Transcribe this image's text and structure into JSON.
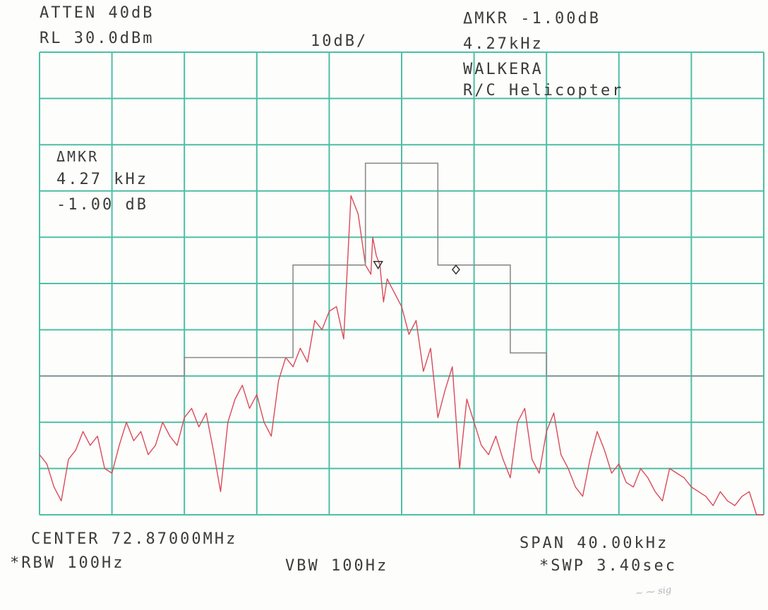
{
  "header": {
    "atten": "ATTEN 40dB",
    "ref_level": "RL 30.0dBm",
    "scale": "10dB/",
    "delta_marker_db": "ΔMKR -1.00dB",
    "delta_marker_freq": "4.27kHz",
    "title_line1": "WALKERA",
    "title_line2": "R/C Helicopter"
  },
  "marker_box": {
    "label": "ΔMKR",
    "freq": "4.27 kHz",
    "level": "-1.00 dB"
  },
  "footer": {
    "center": "CENTER 72.87000MHz",
    "span": "SPAN 40.00kHz",
    "rbw": "*RBW 100Hz",
    "vbw": "VBW 100Hz",
    "sweep": "*SWP 3.40sec"
  },
  "colors": {
    "grid": "#4cbfa6",
    "trace": "#d94a5a",
    "mask": "#8c8c8c",
    "text": "#3b3b3b"
  },
  "chart_data": {
    "type": "line",
    "title": "WALKERA R/C Helicopter",
    "center_mhz": 72.87,
    "span_khz": 40,
    "xlim": [
      -20,
      20
    ],
    "ref_level_dbm": 30,
    "scale_db_per_div": 10,
    "ylim": [
      -70,
      30
    ],
    "grid": true,
    "divisions": {
      "x": 10,
      "y": 10
    },
    "series": [
      {
        "kind": "spectrum-trace",
        "x": [
          -20,
          -19.6,
          -19.2,
          -18.8,
          -18.4,
          -18.0,
          -17.6,
          -17.2,
          -16.8,
          -16.4,
          -16.0,
          -15.6,
          -15.2,
          -14.8,
          -14.4,
          -14.0,
          -13.6,
          -13.2,
          -12.8,
          -12.4,
          -12.0,
          -11.6,
          -11.2,
          -10.8,
          -10.4,
          -10.0,
          -9.6,
          -9.2,
          -8.8,
          -8.4,
          -8.0,
          -7.6,
          -7.2,
          -6.8,
          -6.4,
          -6.0,
          -5.6,
          -5.2,
          -4.8,
          -4.4,
          -4.0,
          -3.6,
          -3.2,
          -2.8,
          -2.4,
          -2.0,
          -1.7,
          -1.6,
          -1.4,
          -1.2,
          -1.0,
          -0.8,
          -0.4,
          0.0,
          0.4,
          0.8,
          1.2,
          1.6,
          2.0,
          2.4,
          2.8,
          3.2,
          3.6,
          4.0,
          4.4,
          4.8,
          5.2,
          5.6,
          6.0,
          6.4,
          6.8,
          7.2,
          7.6,
          8.0,
          8.4,
          8.8,
          9.2,
          9.6,
          10.0,
          10.4,
          10.8,
          11.2,
          11.6,
          12.0,
          12.4,
          12.8,
          13.2,
          13.6,
          14.0,
          14.4,
          14.8,
          15.2,
          15.6,
          16.0,
          16.4,
          16.8,
          17.2,
          17.6,
          18.0,
          18.4,
          18.8,
          19.2,
          19.6,
          20.0
        ],
        "y": [
          -57,
          -59,
          -64,
          -67,
          -58,
          -56,
          -52,
          -55,
          -53,
          -60,
          -61,
          -55,
          -50,
          -54,
          -52,
          -57,
          -55,
          -50,
          -53,
          -55,
          -49,
          -47,
          -51,
          -48,
          -56,
          -65,
          -50,
          -45,
          -42,
          -47,
          -44,
          -50,
          -53,
          -41,
          -36,
          -38,
          -34,
          -37,
          -28,
          -30,
          -26,
          -25,
          -32,
          -1,
          -5,
          -16,
          -18,
          -10,
          -14,
          -16,
          -24,
          -19,
          -22,
          -25,
          -31,
          -28,
          -39,
          -34,
          -49,
          -43,
          -38,
          -60,
          -45,
          -50,
          -55,
          -57,
          -53,
          -58,
          -62,
          -50,
          -47,
          -58,
          -61,
          -52,
          -48,
          -57,
          -60,
          -64,
          -66,
          -58,
          -52,
          -56,
          -61,
          -59,
          -63,
          -64,
          -60,
          -62,
          -65,
          -67,
          -60,
          -61,
          -62,
          -64,
          -65,
          -66,
          -68,
          -65,
          -67,
          -68,
          -66,
          -65,
          -70,
          -70
        ]
      },
      {
        "kind": "limit-mask",
        "x": [
          -20,
          -12,
          -12,
          -6,
          -6,
          -2,
          -2,
          2,
          2,
          6,
          6,
          8,
          8,
          20
        ],
        "y": [
          -40,
          -40,
          -36,
          -36,
          -16,
          -16,
          6,
          6,
          -16,
          -16,
          -35,
          -35,
          -40,
          -40
        ]
      }
    ],
    "markers": [
      {
        "symbol": "triangle-down",
        "x": -1.3,
        "y": -16
      },
      {
        "symbol": "diamond",
        "x": 3.0,
        "y": -17
      }
    ]
  }
}
